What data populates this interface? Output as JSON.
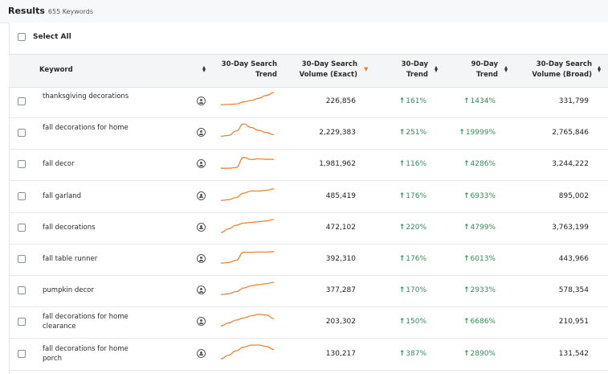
{
  "header": {
    "title": "Results",
    "count": "655 Keywords"
  },
  "select_all": {
    "label": "Select All"
  },
  "columns": {
    "keyword": "Keyword",
    "trend_line1": "30-Day Search",
    "trend_line2": "Trend",
    "exact_line1": "30-Day Search",
    "exact_line2": "Volume (Exact)",
    "t30_line1": "30-Day",
    "t30_line2": "Trend",
    "t90_line1": "90-Day",
    "t90_line2": "Trend",
    "broad_line1": "30-Day Search",
    "broad_line2": "Volume (Broad)"
  },
  "colors": {
    "trend_up": "#2f8f56",
    "sparkline": "#e8863c",
    "sort_active": "#e8863c"
  },
  "rows": [
    {
      "keyword": "thanksgiving decorations",
      "exact": "226,856",
      "t30": "161%",
      "t90": "1434%",
      "broad": "331,799",
      "spark": [
        0.15,
        0.18,
        0.2,
        0.35,
        0.45,
        0.6,
        0.8,
        1.0
      ]
    },
    {
      "keyword": "fall decorations for home",
      "exact": "2,229,383",
      "t30": "251%",
      "t90": "19999%",
      "broad": "2,765,846",
      "spark": [
        0.15,
        0.2,
        0.5,
        1.0,
        0.75,
        0.55,
        0.4,
        0.25
      ]
    },
    {
      "keyword": "fall decor",
      "exact": "1,981,962",
      "t30": "116%",
      "t90": "4286%",
      "broad": "3,244,222",
      "spark": [
        0.1,
        0.1,
        0.15,
        0.85,
        0.7,
        0.75,
        0.72,
        0.72
      ]
    },
    {
      "keyword": "fall garland",
      "exact": "485,419",
      "t30": "176%",
      "t90": "6933%",
      "broad": "895,002",
      "spark": [
        0.1,
        0.15,
        0.3,
        0.6,
        0.75,
        0.75,
        0.8,
        0.9
      ]
    },
    {
      "keyword": "fall decorations",
      "exact": "472,102",
      "t30": "220%",
      "t90": "4799%",
      "broad": "3,763,199",
      "spark": [
        0.05,
        0.3,
        0.55,
        0.7,
        0.75,
        0.8,
        0.85,
        0.95
      ]
    },
    {
      "keyword": "fall table runner",
      "exact": "392,310",
      "t30": "176%",
      "t90": "6013%",
      "broad": "443,966",
      "spark": [
        0.1,
        0.15,
        0.3,
        0.85,
        0.85,
        0.87,
        0.87,
        0.9
      ]
    },
    {
      "keyword": "pumpkin decor",
      "exact": "377,287",
      "t30": "170%",
      "t90": "2933%",
      "broad": "578,354",
      "spark": [
        0.1,
        0.15,
        0.3,
        0.55,
        0.7,
        0.78,
        0.85,
        0.95
      ]
    },
    {
      "keyword": "fall decorations for home clearance",
      "exact": "203,302",
      "t30": "150%",
      "t90": "6686%",
      "broad": "210,951",
      "spark": [
        0.1,
        0.3,
        0.5,
        0.65,
        0.8,
        0.9,
        0.85,
        0.6
      ]
    },
    {
      "keyword": "fall decorations for home porch",
      "exact": "130,217",
      "t30": "387%",
      "t90": "2890%",
      "broad": "131,542",
      "spark": [
        0.05,
        0.3,
        0.6,
        0.85,
        1.0,
        1.0,
        0.9,
        0.7
      ]
    }
  ]
}
